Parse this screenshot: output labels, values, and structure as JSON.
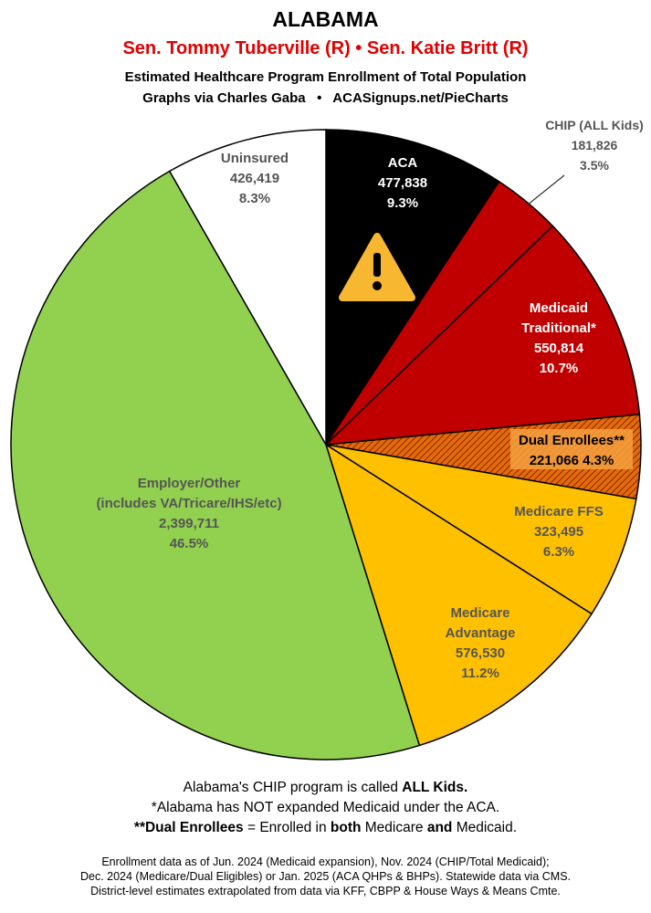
{
  "header": {
    "state": "ALABAMA",
    "senators": "Sen. Tommy Tuberville (R) • Sen. Katie Britt (R)",
    "subtitle": "Estimated Healthcare Program Enrollment of Total Population",
    "credit": "Graphs via Charles Gaba   •   ACASignups.net/PieCharts"
  },
  "chart_data": {
    "type": "pie",
    "title": "Estimated Healthcare Program Enrollment of Total Population",
    "start_angle": "12 o'clock, clockwise",
    "slices": [
      {
        "label_lines": [
          "ACA"
        ],
        "value": 477838,
        "value_text": "477,838",
        "pct": "9.3%",
        "color": "#000000",
        "text_color": "#ffffff"
      },
      {
        "label_lines": [
          "CHIP (ALL Kids)"
        ],
        "value": 181826,
        "value_text": "181,826",
        "pct": "3.5%",
        "color": "#c00000",
        "text_color": "#555555"
      },
      {
        "label_lines": [
          "Medicaid",
          "Traditional*"
        ],
        "value": 550814,
        "value_text": "550,814",
        "pct": "10.7%",
        "color": "#c00000",
        "text_color": "#ffffff"
      },
      {
        "label_lines": [
          "Dual Enrollees**"
        ],
        "value": 221066,
        "value_text": "221,066 4.3%",
        "pct": "",
        "color": "#e36c09",
        "text_color": "#000000",
        "hatched": true
      },
      {
        "label_lines": [
          "Medicare FFS"
        ],
        "value": 323495,
        "value_text": "323,495",
        "pct": "6.3%",
        "color": "#ffc000",
        "text_color": "#555555"
      },
      {
        "label_lines": [
          "Medicare",
          "Advantage"
        ],
        "value": 576530,
        "value_text": "576,530",
        "pct": "11.2%",
        "color": "#ffc000",
        "text_color": "#555555"
      },
      {
        "label_lines": [
          "Employer/Other",
          "(includes VA/Tricare/IHS/etc)"
        ],
        "value": 2399711,
        "value_text": "2,399,711",
        "pct": "46.5%",
        "color": "#92d050",
        "text_color": "#555555"
      },
      {
        "label_lines": [
          "Uninsured"
        ],
        "value": 426419,
        "value_text": "426,419",
        "pct": "8.3%",
        "color": "#ffffff",
        "text_color": "#555555"
      }
    ],
    "warning_icon": "warning-triangle-icon"
  },
  "notes": {
    "line1_a": "Alabama's CHIP program is called ",
    "line1_b": "ALL Kids.",
    "line2": "*Alabama has NOT expanded Medicaid under the ACA.",
    "line3_a": "**Dual Enrollees",
    "line3_b": " = Enrolled in ",
    "line3_c": "both",
    "line3_d": " Medicare ",
    "line3_e": "and",
    "line3_f": " Medicaid."
  },
  "footer": {
    "line1": "Enrollment data as of Jun. 2024 (Medicaid expansion), Nov. 2024 (CHIP/Total Medicaid);",
    "line2": "Dec. 2024 (Medicare/Dual Eligibles) or Jan. 2025 (ACA QHPs & BHPs). Statewide data via CMS.",
    "line3": "District-level estimates extrapolated from data via KFF, CBPP & House Ways & Means Cmte."
  }
}
